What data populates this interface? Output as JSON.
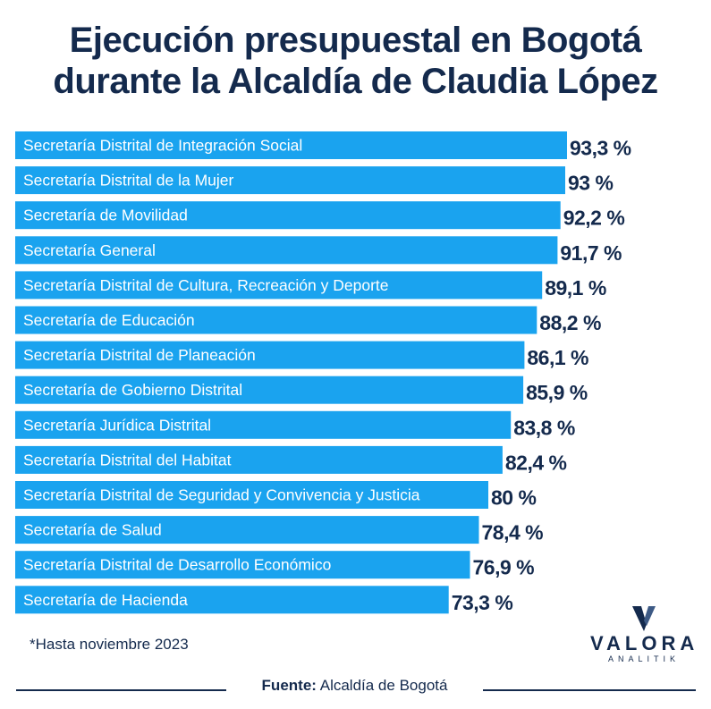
{
  "title": {
    "line1": "Ejecución presupuestal en Bogotá",
    "line2": "durante la Alcaldía de Claudia López"
  },
  "chart_data": {
    "type": "bar",
    "orientation": "horizontal",
    "title": "Ejecución presupuestal en Bogotá durante la Alcaldía de Claudia López",
    "unit": "%",
    "grid": false,
    "xlim": [
      0,
      93.3
    ],
    "categories": [
      "Secretaría Distrital de Integración Social",
      "Secretaría Distrital de la Mujer",
      "Secretaría de Movilidad",
      "Secretaría General",
      "Secretaría Distrital de Cultura, Recreación y Deporte",
      "Secretaría de Educación",
      "Secretaría Distrital de Planeación",
      "Secretaría de Gobierno Distrital",
      "Secretaría Jurídica Distrital",
      "Secretaría Distrital del Habitat",
      "Secretaría Distrital de Seguridad y Convivencia y Justicia",
      "Secretaría de Salud",
      "Secretaría Distrital de Desarrollo Económico",
      "Secretaría de Hacienda"
    ],
    "values": [
      93.3,
      93,
      92.2,
      91.7,
      89.1,
      88.2,
      86.1,
      85.9,
      83.8,
      82.4,
      80,
      78.4,
      76.9,
      73.3
    ],
    "value_labels": [
      "93,3 %",
      "93 %",
      "92,2 %",
      "91,7 %",
      "89,1 %",
      "88,2 %",
      "86,1 %",
      "85,9 %",
      "83,8 %",
      "82,4 %",
      "80 %",
      "78,4 %",
      "76,9 %",
      "73,3 %"
    ],
    "bar_color": "#1aa3ef"
  },
  "footnote": "*Hasta noviembre 2023",
  "source": {
    "label": "Fuente:",
    "text": "Alcaldía de Bogotá"
  },
  "logo": {
    "word": "VALORA",
    "sub": "ANALITIK"
  }
}
